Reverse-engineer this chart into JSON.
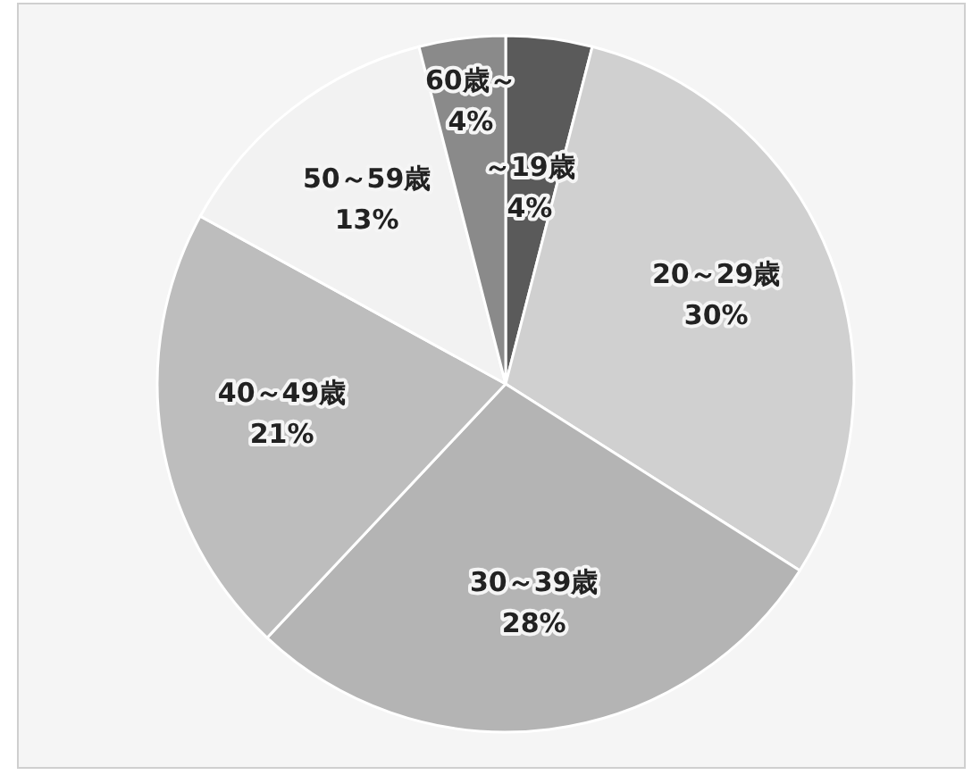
{
  "chart_data": {
    "type": "pie",
    "categories": [
      "～19歳",
      "20～29歳",
      "30～39歳",
      "40～49歳",
      "50～59歳",
      "60歳～"
    ],
    "values": [
      4,
      30,
      28,
      21,
      13,
      4
    ],
    "colors": [
      "#5a5a5a",
      "#d0d0d0",
      "#b4b4b4",
      "#bdbdbd",
      "#f2f2f2",
      "#8a8a8a"
    ],
    "value_labels": [
      "4%",
      "30%",
      "28%",
      "21%",
      "13%",
      "4%"
    ]
  }
}
